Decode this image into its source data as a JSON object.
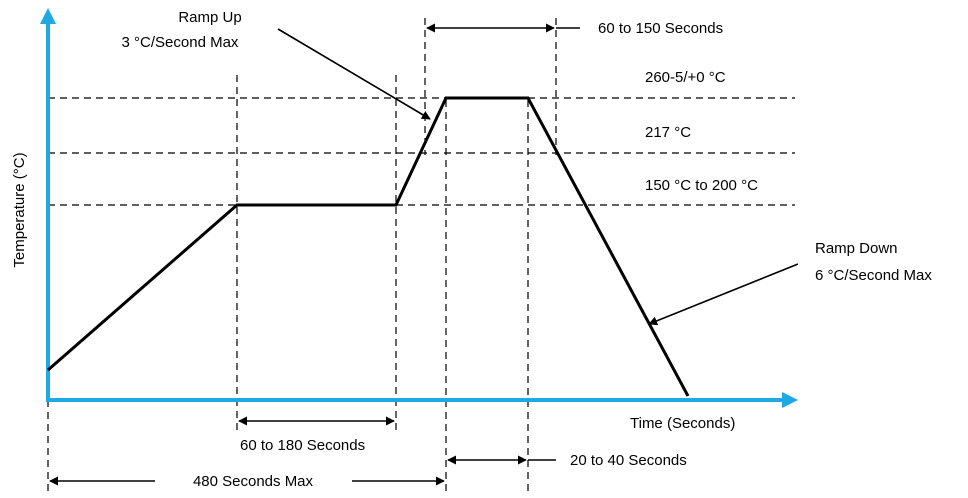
{
  "axes": {
    "y_label": "Temperature (°C)",
    "x_label": "Time (Seconds)",
    "axis_color": "#1EA9E1"
  },
  "levels": {
    "peak": "260-5/+0 °C",
    "liquidus": "217 °C",
    "soak": "150 °C  to 200 °C"
  },
  "annotations": {
    "ramp_up_line1": "Ramp Up",
    "ramp_up_line2": "3 °C/Second Max",
    "ramp_down_line1": "Ramp Down",
    "ramp_down_line2": "6 °C/Second Max"
  },
  "durations": {
    "above_liquidus": "60 to 150 Seconds",
    "soak": "60 to 180 Seconds",
    "peak": "20 to 40 Seconds",
    "total": "480 Seconds Max"
  },
  "colors": {
    "axis": "#1EA9E1",
    "profile": "#000000",
    "guides": "#000000"
  }
}
